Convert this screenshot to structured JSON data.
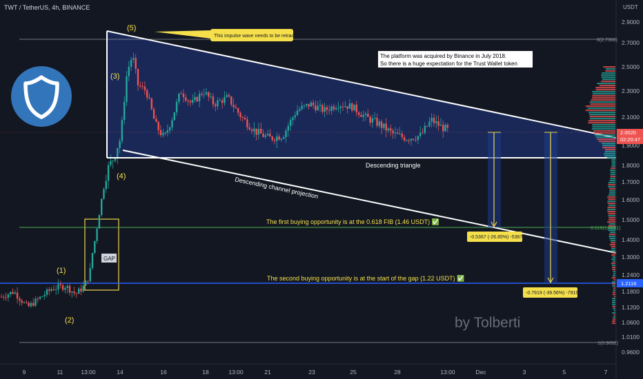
{
  "header": {
    "symbol_line": "TWT / TetherUS, 4h, BINANCE",
    "currency": "USDT"
  },
  "watermark": "by Tolberti",
  "chart_data": {
    "type": "candlestick",
    "price_axis": {
      "ticks": [
        "2.9000",
        "2.7000",
        "2.5000",
        "2.3000",
        "2.1000",
        "1.9000",
        "1.8000",
        "1.7000",
        "1.6000",
        "1.5000",
        "1.4000",
        "1.3000",
        "1.2400",
        "1.1800",
        "1.1200",
        "1.0600",
        "1.0100",
        "0.9600"
      ],
      "current_price": "2.0020",
      "countdown": "02:20:47",
      "gap_level_label": "1.2116"
    },
    "time_axis": {
      "ticks": [
        "9",
        "11",
        "13:00",
        "14",
        "16",
        "18",
        "13:00",
        "21",
        "23",
        "25",
        "28",
        "13:00",
        "Dec",
        "3",
        "5",
        "7"
      ]
    },
    "fib_levels": [
      {
        "label": "0(2.7360)"
      },
      {
        "label": "0.618(1.4591)"
      },
      {
        "label": "1(0.9892)"
      }
    ],
    "wave_labels": [
      "(1)",
      "(2)",
      "(3)",
      "(4)",
      "(5)"
    ],
    "callouts": {
      "impulse_note": "This impulse wave needs to be retraced",
      "binance_note_line1": "The platform was acquired by Binance in July 2018.",
      "binance_note_line2": "So there is a huge expectation for the Trust Wallet token",
      "triangle_label": "Descending triangle",
      "channel_label": "Descending channel projection",
      "buy1": "The first buying opportunity is at the 0.618 FIB (1.46 USDT) ✅",
      "buy2": "The second buying opportunity is at the start of the gap (1.22 USDT) ✅",
      "gap": "GAP",
      "measure1": "-0.5367 (-26.85%) -5367",
      "measure2": "-0.7919 (-39.56%) -7919"
    },
    "colors": {
      "up": "#26a69a",
      "down": "#ef5350",
      "triangle_fill": "#1c2a5e",
      "gap_box": "#f0d84b",
      "fib_green": "#4caf50",
      "gap_line_blue": "#2962ff",
      "label_yellow": "#f5e04c"
    }
  }
}
